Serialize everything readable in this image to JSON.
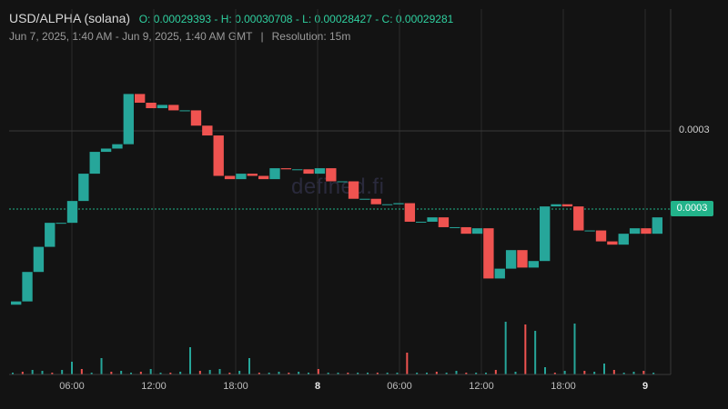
{
  "header": {
    "symbol": "USD/ALPHA (solana)",
    "ohlc": "O: 0.00029393 - H: 0.00030708 - L: 0.00028427 - C: 0.00029281",
    "range": "Jun 7, 2025, 1:40 AM - Jun 9, 2025, 1:40 AM GMT",
    "separator": "|",
    "resolution": "Resolution: 15m"
  },
  "watermark": "defined.fi",
  "axis": {
    "price_label": "0.0003",
    "current_price_tag": "0.0003",
    "time_labels": [
      "06:00",
      "12:00",
      "18:00",
      "8",
      "06:00",
      "12:00",
      "18:00",
      "9"
    ]
  },
  "colors": {
    "background": "#131313",
    "up": "#26a69a",
    "down": "#ef5350",
    "grid": "#2b2b2b",
    "current_price": "#22b38a"
  },
  "chart_data": {
    "type": "candlestick",
    "x_start": "Jun 7, 2025, 1:40 AM",
    "x_end": "Jun 9, 2025, 1:40 AM",
    "y_label": "0.0003",
    "candles": [
      {
        "o": 0.000284,
        "c": 0.0002843
      },
      {
        "o": 0.0002843,
        "c": 0.000287
      },
      {
        "o": 0.000287,
        "c": 0.0002893
      },
      {
        "o": 0.0002893,
        "c": 0.0002915
      },
      {
        "o": 0.0002915,
        "c": 0.0002915
      },
      {
        "o": 0.0002915,
        "c": 0.0002935
      },
      {
        "o": 0.0002935,
        "c": 0.000296
      },
      {
        "o": 0.000296,
        "c": 0.000298
      },
      {
        "o": 0.000298,
        "c": 0.0002983
      },
      {
        "o": 0.0002983,
        "c": 0.0002987
      },
      {
        "o": 0.0002987,
        "c": 0.0003033
      },
      {
        "o": 0.0003033,
        "c": 0.0003025
      },
      {
        "o": 0.0003025,
        "c": 0.000302
      },
      {
        "o": 0.000302,
        "c": 0.0003023
      },
      {
        "o": 0.0003023,
        "c": 0.0003018
      },
      {
        "o": 0.0003018,
        "c": 0.0003018
      },
      {
        "o": 0.0003018,
        "c": 0.0003004
      },
      {
        "o": 0.0003004,
        "c": 0.0002995
      },
      {
        "o": 0.0002995,
        "c": 0.0002958
      },
      {
        "o": 0.0002958,
        "c": 0.0002955
      },
      {
        "o": 0.0002955,
        "c": 0.000296
      },
      {
        "o": 0.000296,
        "c": 0.0002958
      },
      {
        "o": 0.0002958,
        "c": 0.0002955
      },
      {
        "o": 0.0002955,
        "c": 0.0002965
      },
      {
        "o": 0.0002965,
        "c": 0.0002964
      },
      {
        "o": 0.0002964,
        "c": 0.0002964
      },
      {
        "o": 0.0002964,
        "c": 0.000296
      },
      {
        "o": 0.000296,
        "c": 0.0002965
      },
      {
        "o": 0.0002965,
        "c": 0.0002953
      },
      {
        "o": 0.0002953,
        "c": 0.0002953
      },
      {
        "o": 0.0002953,
        "c": 0.0002937
      },
      {
        "o": 0.0002937,
        "c": 0.0002937
      },
      {
        "o": 0.0002937,
        "c": 0.0002932
      },
      {
        "o": 0.0002932,
        "c": 0.0002932
      },
      {
        "o": 0.0002932,
        "c": 0.0002933
      },
      {
        "o": 0.0002933,
        "c": 0.0002916
      },
      {
        "o": 0.0002916,
        "c": 0.0002916
      },
      {
        "o": 0.0002916,
        "c": 0.000292
      },
      {
        "o": 0.000292,
        "c": 0.0002911
      },
      {
        "o": 0.0002911,
        "c": 0.0002911
      },
      {
        "o": 0.0002911,
        "c": 0.0002905
      },
      {
        "o": 0.0002905,
        "c": 0.000291
      },
      {
        "o": 0.000291,
        "c": 0.0002864
      },
      {
        "o": 0.0002864,
        "c": 0.0002873
      },
      {
        "o": 0.0002873,
        "c": 0.000289
      },
      {
        "o": 0.000289,
        "c": 0.0002874
      },
      {
        "o": 0.0002874,
        "c": 0.000288
      },
      {
        "o": 0.000288,
        "c": 0.000293
      },
      {
        "o": 0.000293,
        "c": 0.0002932
      },
      {
        "o": 0.0002932,
        "c": 0.000293
      },
      {
        "o": 0.000293,
        "c": 0.0002908
      },
      {
        "o": 0.0002908,
        "c": 0.0002908
      },
      {
        "o": 0.0002908,
        "c": 0.0002898
      },
      {
        "o": 0.0002898,
        "c": 0.0002895
      },
      {
        "o": 0.0002895,
        "c": 0.0002905
      },
      {
        "o": 0.0002905,
        "c": 0.000291
      },
      {
        "o": 0.000291,
        "c": 0.0002905
      },
      {
        "o": 0.0002905,
        "c": 0.000292
      }
    ]
  }
}
